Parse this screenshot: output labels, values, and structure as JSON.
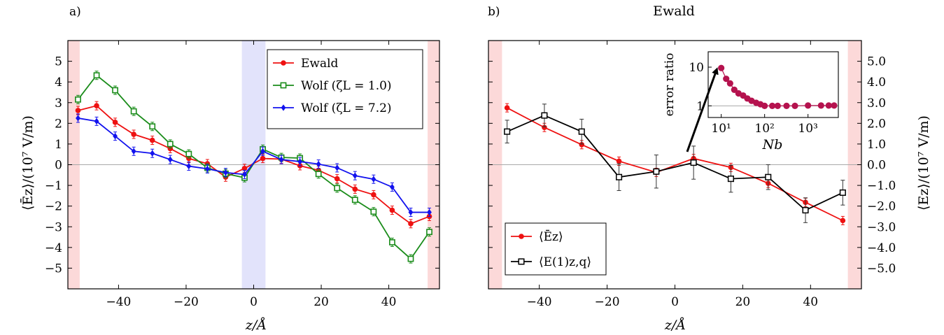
{
  "chart_data": [
    {
      "panel": "a)",
      "type": "line",
      "title": "",
      "xlabel": "z/Å",
      "ylabel": "⟨Ēz⟩/(10⁷ V/m)",
      "xlim": [
        -55,
        55
      ],
      "ylim": [
        -6,
        6
      ],
      "xticks": [
        "−40",
        "−20",
        "0",
        "20",
        "40"
      ],
      "xtick_values": [
        -40,
        -20,
        0,
        20,
        40
      ],
      "yticks": [
        "−5",
        "−4",
        "−3",
        "−2",
        "−1",
        "0",
        "1",
        "2",
        "3",
        "4",
        "5"
      ],
      "ytick_values": [
        -5,
        -4,
        -3,
        -2,
        -1,
        0,
        1,
        2,
        3,
        4,
        5
      ],
      "shaded_regions": [
        {
          "from": -55,
          "to": -51.5,
          "color": "#fcd9d9"
        },
        {
          "from": -3.5,
          "to": 3.5,
          "color": "#e2e3fb"
        },
        {
          "from": 51.5,
          "to": 55,
          "color": "#fcd9d9"
        }
      ],
      "legend_position": "top-right",
      "series": [
        {
          "name": "Ewald",
          "color": "#ee1111",
          "marker": "circle",
          "x": [
            -52,
            -46.5,
            -41,
            -35.5,
            -30,
            -24.7,
            -19.2,
            -13.7,
            -8.3,
            -2.7,
            2.7,
            8.2,
            13.7,
            19.2,
            24.7,
            30,
            35.5,
            41,
            46.5,
            52
          ],
          "y": [
            2.62,
            2.85,
            2.05,
            1.47,
            1.18,
            0.78,
            0.3,
            0.05,
            -0.6,
            -0.18,
            0.3,
            0.27,
            -0.05,
            -0.27,
            -0.68,
            -1.18,
            -1.45,
            -2.2,
            -2.85,
            -2.5
          ]
        },
        {
          "name": "Wolf (ζL = 1.0)",
          "color": "#1a8c1a",
          "marker": "square",
          "x": [
            -52,
            -46.5,
            -41,
            -35.5,
            -30,
            -24.7,
            -19.2,
            -13.7,
            -8.3,
            -2.7,
            2.7,
            8.2,
            13.7,
            19.2,
            24.7,
            30,
            35.5,
            41,
            46.5,
            52
          ],
          "y": [
            3.15,
            4.32,
            3.6,
            2.58,
            1.85,
            1.0,
            0.52,
            -0.15,
            -0.43,
            -0.63,
            0.75,
            0.35,
            0.32,
            -0.45,
            -1.13,
            -1.7,
            -2.27,
            -3.75,
            -4.55,
            -3.25
          ]
        },
        {
          "name": "Wolf (ζL = 7.2)",
          "color": "#1212ee",
          "marker": "diamond",
          "x": [
            -52,
            -46.5,
            -41,
            -35.5,
            -30,
            -24.7,
            -19.2,
            -13.7,
            -8.3,
            -2.7,
            2.7,
            8.2,
            13.7,
            19.2,
            24.7,
            30,
            35.5,
            41,
            46.5,
            52
          ],
          "y": [
            2.25,
            2.1,
            1.38,
            0.65,
            0.55,
            0.25,
            -0.07,
            -0.2,
            -0.38,
            -0.47,
            0.65,
            0.25,
            0.15,
            0.03,
            -0.15,
            -0.53,
            -0.7,
            -1.08,
            -2.3,
            -2.3
          ]
        }
      ]
    },
    {
      "panel": "b)",
      "type": "line",
      "title": "Ewald",
      "xlabel": "z/Å",
      "ylabel": "⟨Ez⟩/(10⁷ V/m)",
      "xlim": [
        -55,
        55
      ],
      "ylim": [
        -6,
        6
      ],
      "xticks": [
        "−40",
        "−20",
        "0",
        "20",
        "40"
      ],
      "xtick_values": [
        -40,
        -20,
        0,
        20,
        40
      ],
      "yticks": [
        "5.0",
        "4.0",
        "3.0",
        "2.0",
        "1.0",
        "0.0",
        "−1.0",
        "−2.0",
        "−3.0",
        "−4.0",
        "−5.0"
      ],
      "ytick_values": [
        5,
        4,
        3,
        2,
        1,
        0,
        -1,
        -2,
        -3,
        -4,
        -5
      ],
      "shaded_regions": [
        {
          "from": -55,
          "to": -51,
          "color": "#fcd9d9"
        },
        {
          "from": 51,
          "to": 55,
          "color": "#fcd9d9"
        }
      ],
      "legend_position": "bottom-left",
      "series": [
        {
          "name": "⟨Ēz⟩",
          "color": "#ee1111",
          "marker": "circle",
          "x": [
            -49.5,
            -38.5,
            -27.5,
            -16.5,
            -5.5,
            5.5,
            16.5,
            27.5,
            38.5,
            49.5
          ],
          "y": [
            2.75,
            1.8,
            0.97,
            0.17,
            -0.37,
            0.3,
            -0.13,
            -0.9,
            -1.82,
            -2.7
          ]
        },
        {
          "name": "⟨E(1)z,q⟩",
          "color": "#000000",
          "marker": "open-square",
          "x": [
            -49.5,
            -38.5,
            -27.5,
            -16.5,
            -5.5,
            5.5,
            16.5,
            27.5,
            38.5,
            49.5
          ],
          "y": [
            1.6,
            2.38,
            1.6,
            -0.6,
            -0.33,
            0.1,
            -0.68,
            -0.6,
            -2.2,
            -1.35
          ],
          "yerr": [
            0.55,
            0.55,
            0.6,
            0.65,
            0.8,
            0.8,
            0.65,
            0.6,
            0.6,
            0.6
          ]
        }
      ],
      "inset": {
        "type": "scatter",
        "xlabel": "Nb",
        "ylabel": "error ratio",
        "xscale": "log",
        "yscale": "log",
        "xlim": [
          5,
          5000
        ],
        "ylim": [
          0.5,
          25
        ],
        "xticks": [
          "10¹",
          "10²",
          "10³"
        ],
        "xtick_values": [
          10,
          100,
          1000
        ],
        "yticks": [
          "1",
          "10"
        ],
        "ytick_values": [
          1,
          10
        ],
        "reference_line_y": 1,
        "color": "#b5124e",
        "x": [
          10,
          13,
          16,
          20,
          25,
          32,
          40,
          50,
          64,
          80,
          100,
          150,
          200,
          320,
          500,
          1000,
          2000,
          3000,
          4000
        ],
        "y": [
          9.5,
          5.0,
          3.8,
          2.6,
          2.1,
          1.85,
          1.55,
          1.35,
          1.2,
          1.1,
          1.0,
          1.0,
          1.0,
          1.0,
          1.0,
          1.02,
          1.02,
          1.02,
          1.02
        ]
      }
    }
  ]
}
